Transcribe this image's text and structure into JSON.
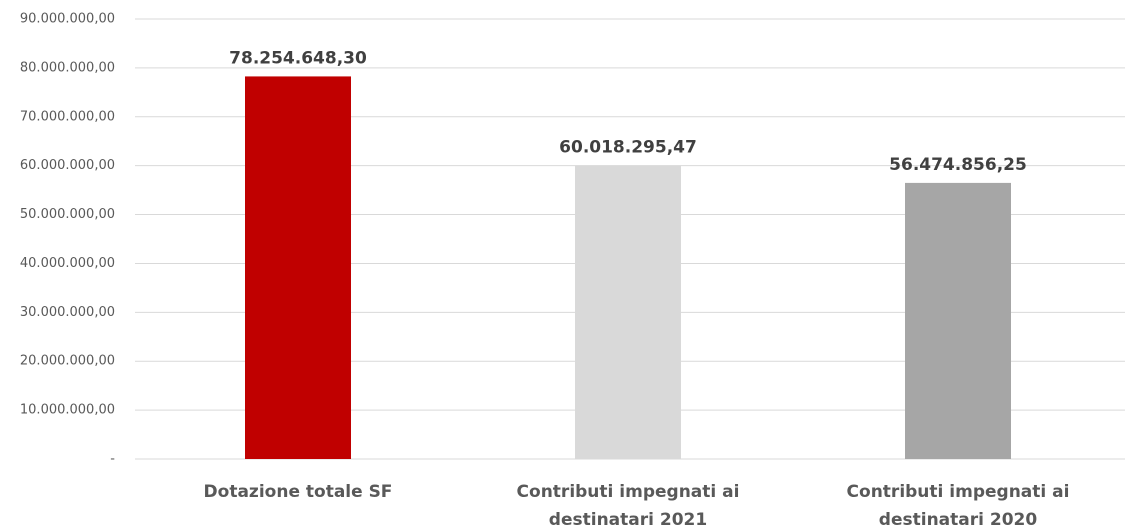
{
  "chart_data": {
    "type": "bar",
    "categories": [
      "Dotazione totale SF",
      "Contributi impegnati ai destinatari 2021",
      "Contributi impegnati ai destinatari 2020"
    ],
    "values": [
      78254648.3,
      60018295.47,
      56474856.25
    ],
    "value_labels": [
      "78.254.648,30",
      "60.018.295,47",
      "56.474.856,25"
    ],
    "colors": [
      "#c00000",
      "#d9d9d9",
      "#a6a6a6"
    ],
    "ylim": [
      0,
      90000000
    ],
    "yticks": [
      {
        "value": 0,
        "label": "-"
      },
      {
        "value": 10000000,
        "label": "10.000.000,00"
      },
      {
        "value": 20000000,
        "label": "20.000.000,00"
      },
      {
        "value": 30000000,
        "label": "30.000.000,00"
      },
      {
        "value": 40000000,
        "label": "40.000.000,00"
      },
      {
        "value": 50000000,
        "label": "50.000.000,00"
      },
      {
        "value": 60000000,
        "label": "60.000.000,00"
      },
      {
        "value": 70000000,
        "label": "70.000.000,00"
      },
      {
        "value": 80000000,
        "label": "80.000.000,00"
      },
      {
        "value": 90000000,
        "label": "90.000.000,00"
      }
    ],
    "grid": true
  }
}
